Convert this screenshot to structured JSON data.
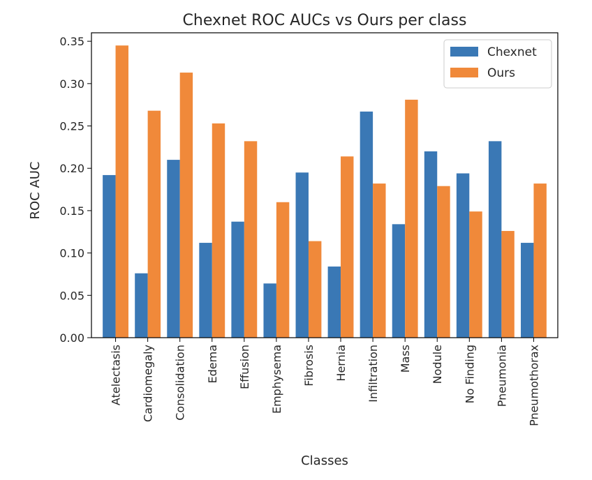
{
  "chart_data": {
    "type": "bar",
    "title": "Chexnet ROC AUCs vs Ours per class",
    "xlabel": "Classes",
    "ylabel": "ROC AUC",
    "ylim": [
      0,
      0.36
    ],
    "yticks": [
      "0.00",
      "0.05",
      "0.10",
      "0.15",
      "0.20",
      "0.25",
      "0.30",
      "0.35"
    ],
    "grid": false,
    "legend_position": "top-right",
    "categories": [
      "Atelectasis",
      "Cardiomegaly",
      "Consolidation",
      "Edema",
      "Effusion",
      "Emphysema",
      "Fibrosis",
      "Hernia",
      "Infiltration",
      "Mass",
      "Nodule",
      "No Finding",
      "Pneumonia",
      "Pneumothorax"
    ],
    "series": [
      {
        "name": "Chexnet",
        "color": "#3a78b5",
        "values": [
          0.192,
          0.076,
          0.21,
          0.112,
          0.137,
          0.064,
          0.195,
          0.084,
          0.267,
          0.134,
          0.22,
          0.194,
          0.232,
          0.112
        ]
      },
      {
        "name": "Ours",
        "color": "#f0893a",
        "values": [
          0.345,
          0.268,
          0.313,
          0.253,
          0.232,
          0.16,
          0.114,
          0.214,
          0.182,
          0.281,
          0.179,
          0.149,
          0.126,
          0.182
        ]
      }
    ]
  }
}
